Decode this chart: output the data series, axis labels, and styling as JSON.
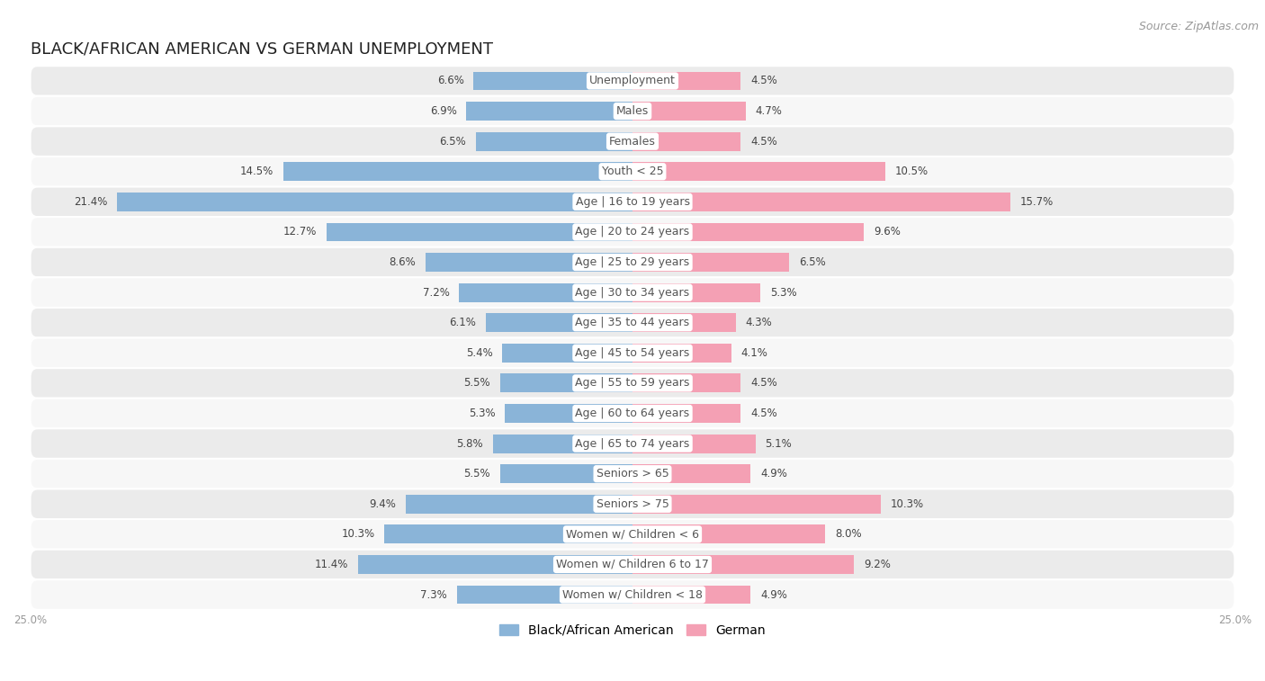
{
  "title": "BLACK/AFRICAN AMERICAN VS GERMAN UNEMPLOYMENT",
  "source": "Source: ZipAtlas.com",
  "categories": [
    "Unemployment",
    "Males",
    "Females",
    "Youth < 25",
    "Age | 16 to 19 years",
    "Age | 20 to 24 years",
    "Age | 25 to 29 years",
    "Age | 30 to 34 years",
    "Age | 35 to 44 years",
    "Age | 45 to 54 years",
    "Age | 55 to 59 years",
    "Age | 60 to 64 years",
    "Age | 65 to 74 years",
    "Seniors > 65",
    "Seniors > 75",
    "Women w/ Children < 6",
    "Women w/ Children 6 to 17",
    "Women w/ Children < 18"
  ],
  "black_values": [
    6.6,
    6.9,
    6.5,
    14.5,
    21.4,
    12.7,
    8.6,
    7.2,
    6.1,
    5.4,
    5.5,
    5.3,
    5.8,
    5.5,
    9.4,
    10.3,
    11.4,
    7.3
  ],
  "german_values": [
    4.5,
    4.7,
    4.5,
    10.5,
    15.7,
    9.6,
    6.5,
    5.3,
    4.3,
    4.1,
    4.5,
    4.5,
    5.1,
    4.9,
    10.3,
    8.0,
    9.2,
    4.9
  ],
  "black_color": "#8ab4d8",
  "german_color": "#f4a0b4",
  "bar_height": 0.62,
  "xlim": 25.0,
  "background_color": "#ffffff",
  "row_odd_color": "#ebebeb",
  "row_even_color": "#f7f7f7",
  "label_color": "#555555",
  "value_color": "#444444",
  "axis_label_color": "#999999",
  "title_fontsize": 13,
  "label_fontsize": 9,
  "value_fontsize": 8.5,
  "legend_fontsize": 10,
  "source_fontsize": 9
}
